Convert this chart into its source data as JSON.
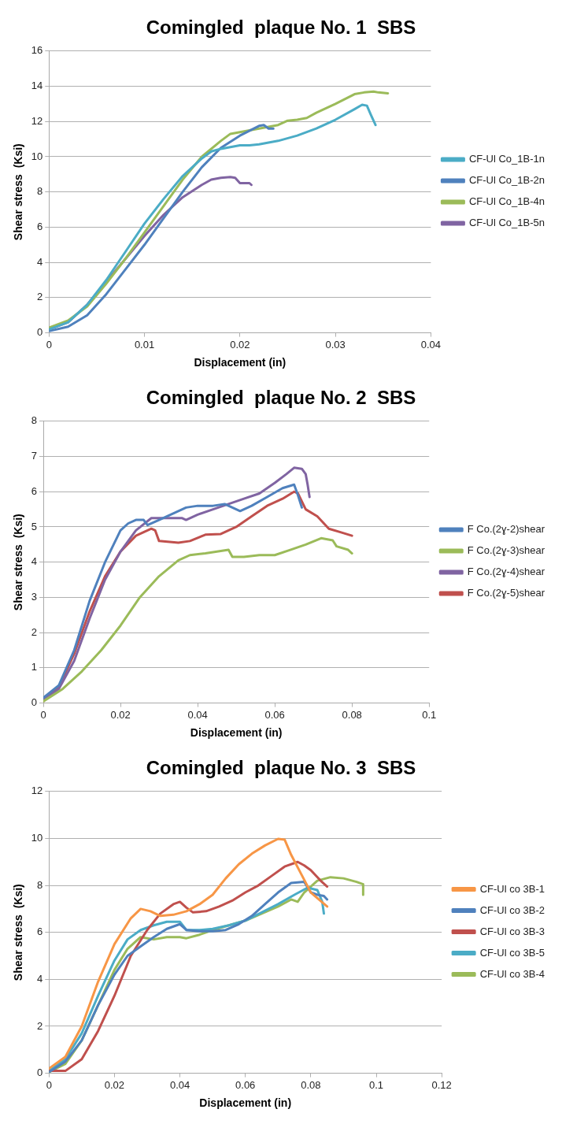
{
  "chart_data": [
    {
      "type": "line",
      "title": "Comingled  plaque No. 1  SBS",
      "xlabel": "Displacement (in)",
      "ylabel": "Shear stress  (Ksi)",
      "xlim": [
        0,
        0.04
      ],
      "ylim": [
        0,
        16
      ],
      "xticks": [
        0,
        0.01,
        0.02,
        0.03,
        0.04
      ],
      "yticks": [
        0,
        2,
        4,
        6,
        8,
        10,
        12,
        14,
        16
      ],
      "grid": "y",
      "legend": "right",
      "series": [
        {
          "name": "CF-Ul Co_1B-1n",
          "color": "#4bacc6",
          "x": [
            0,
            0.002,
            0.004,
            0.006,
            0.008,
            0.01,
            0.012,
            0.014,
            0.016,
            0.017,
            0.018,
            0.02,
            0.021,
            0.022,
            0.024,
            0.026,
            0.028,
            0.03,
            0.032,
            0.0328,
            0.0333,
            0.0337,
            0.0342
          ],
          "values": [
            0.2,
            0.6,
            1.6,
            3.0,
            4.6,
            6.2,
            7.6,
            8.9,
            9.9,
            10.3,
            10.45,
            10.65,
            10.65,
            10.7,
            10.9,
            11.2,
            11.6,
            12.1,
            12.7,
            12.95,
            12.9,
            12.4,
            11.8
          ]
        },
        {
          "name": "CF-Ul Co_1B-2n",
          "color": "#4f81bd",
          "x": [
            0,
            0.002,
            0.004,
            0.006,
            0.008,
            0.01,
            0.012,
            0.014,
            0.016,
            0.018,
            0.02,
            0.022,
            0.0225,
            0.023,
            0.0235
          ],
          "values": [
            0.1,
            0.35,
            1.0,
            2.2,
            3.6,
            5.0,
            6.5,
            8.0,
            9.4,
            10.5,
            11.2,
            11.75,
            11.8,
            11.6,
            11.6
          ]
        },
        {
          "name": "CF-Ul Co_1B-4n",
          "color": "#9bbb59",
          "x": [
            0,
            0.002,
            0.004,
            0.006,
            0.008,
            0.01,
            0.012,
            0.014,
            0.016,
            0.018,
            0.019,
            0.02,
            0.022,
            0.024,
            0.025,
            0.026,
            0.027,
            0.028,
            0.03,
            0.032,
            0.033,
            0.034,
            0.0345,
            0.0355
          ],
          "values": [
            0.3,
            0.7,
            1.5,
            2.8,
            4.2,
            5.7,
            7.2,
            8.7,
            10.0,
            10.9,
            11.3,
            11.4,
            11.6,
            11.8,
            12.05,
            12.1,
            12.2,
            12.5,
            13.0,
            13.55,
            13.65,
            13.7,
            13.65,
            13.6
          ]
        },
        {
          "name": "CF-Ul Co_1B-5n",
          "color": "#8064a2",
          "x": [
            0,
            0.002,
            0.004,
            0.006,
            0.008,
            0.01,
            0.012,
            0.014,
            0.016,
            0.017,
            0.018,
            0.019,
            0.0195,
            0.02,
            0.021,
            0.0212
          ],
          "values": [
            0.2,
            0.6,
            1.6,
            2.9,
            4.2,
            5.5,
            6.7,
            7.7,
            8.4,
            8.7,
            8.8,
            8.85,
            8.8,
            8.5,
            8.5,
            8.4
          ]
        }
      ]
    },
    {
      "type": "line",
      "title": "Comingled  plaque No. 2  SBS",
      "xlabel": "Displacement (in)",
      "ylabel": "Shear stress  (Ksi)",
      "xlim": [
        0,
        0.1
      ],
      "ylim": [
        0,
        8
      ],
      "xticks": [
        0,
        0.02,
        0.04,
        0.06,
        0.08,
        0.1
      ],
      "yticks": [
        0,
        1,
        2,
        3,
        4,
        5,
        6,
        7,
        8
      ],
      "grid": "y",
      "legend": "right",
      "series": [
        {
          "name": "F Co.(2ɣ-2)shear",
          "color": "#4f81bd",
          "x": [
            0,
            0.004,
            0.008,
            0.012,
            0.016,
            0.02,
            0.022,
            0.024,
            0.026,
            0.027,
            0.03,
            0.034,
            0.037,
            0.04,
            0.044,
            0.047,
            0.049,
            0.051,
            0.054,
            0.058,
            0.062,
            0.065,
            0.066,
            0.067
          ],
          "values": [
            0.15,
            0.5,
            1.5,
            2.9,
            4.0,
            4.9,
            5.1,
            5.2,
            5.2,
            5.05,
            5.2,
            5.4,
            5.55,
            5.6,
            5.6,
            5.65,
            5.55,
            5.45,
            5.6,
            5.85,
            6.1,
            6.2,
            5.9,
            5.55
          ]
        },
        {
          "name": "F Co.(2ɣ-3)shear",
          "color": "#9bbb59",
          "x": [
            0,
            0.005,
            0.01,
            0.015,
            0.02,
            0.025,
            0.03,
            0.035,
            0.038,
            0.042,
            0.045,
            0.048,
            0.049,
            0.052,
            0.056,
            0.06,
            0.064,
            0.068,
            0.072,
            0.075,
            0.076,
            0.079,
            0.08
          ],
          "values": [
            0.05,
            0.4,
            0.9,
            1.5,
            2.2,
            3.0,
            3.6,
            4.05,
            4.2,
            4.25,
            4.3,
            4.35,
            4.15,
            4.15,
            4.2,
            4.2,
            4.35,
            4.5,
            4.68,
            4.62,
            4.45,
            4.35,
            4.25
          ]
        },
        {
          "name": "F Co.(2ɣ-4)shear",
          "color": "#8064a2",
          "x": [
            0,
            0.004,
            0.008,
            0.012,
            0.016,
            0.02,
            0.024,
            0.028,
            0.03,
            0.032,
            0.036,
            0.037,
            0.04,
            0.044,
            0.048,
            0.052,
            0.056,
            0.06,
            0.063,
            0.065,
            0.067,
            0.068,
            0.0685,
            0.069
          ],
          "values": [
            0.1,
            0.4,
            1.2,
            2.4,
            3.5,
            4.3,
            4.9,
            5.25,
            5.25,
            5.25,
            5.25,
            5.2,
            5.35,
            5.5,
            5.65,
            5.8,
            5.95,
            6.25,
            6.5,
            6.68,
            6.65,
            6.5,
            6.2,
            5.85
          ]
        },
        {
          "name": "F Co.(2ɣ-5)shear",
          "color": "#c0504d",
          "x": [
            0,
            0.004,
            0.008,
            0.012,
            0.016,
            0.02,
            0.024,
            0.028,
            0.029,
            0.03,
            0.035,
            0.038,
            0.042,
            0.046,
            0.05,
            0.054,
            0.058,
            0.062,
            0.065,
            0.066,
            0.068,
            0.071,
            0.074,
            0.077,
            0.08
          ],
          "values": [
            0.05,
            0.45,
            1.4,
            2.6,
            3.6,
            4.3,
            4.75,
            4.95,
            4.9,
            4.6,
            4.55,
            4.6,
            4.78,
            4.8,
            5.0,
            5.3,
            5.6,
            5.8,
            6.0,
            5.95,
            5.5,
            5.3,
            4.95,
            4.85,
            4.75
          ]
        }
      ]
    },
    {
      "type": "line",
      "title": "Comingled  plaque No. 3  SBS",
      "xlabel": "Displacement (in)",
      "ylabel": "Shear stress  (Ksi)",
      "xlim": [
        0,
        0.12
      ],
      "ylim": [
        0,
        12
      ],
      "xticks": [
        0,
        0.02,
        0.04,
        0.06,
        0.08,
        0.1,
        0.12
      ],
      "yticks": [
        0,
        2,
        4,
        6,
        8,
        10,
        12
      ],
      "grid": "y",
      "legend": "right",
      "series": [
        {
          "name": "CF-Ul co 3B-1",
          "color": "#f79646",
          "x": [
            0,
            0.005,
            0.01,
            0.015,
            0.02,
            0.025,
            0.028,
            0.031,
            0.034,
            0.038,
            0.042,
            0.046,
            0.05,
            0.054,
            0.058,
            0.062,
            0.066,
            0.07,
            0.072,
            0.074,
            0.077,
            0.08,
            0.085
          ],
          "values": [
            0.2,
            0.7,
            2.0,
            3.9,
            5.5,
            6.6,
            7.0,
            6.9,
            6.7,
            6.75,
            6.9,
            7.2,
            7.6,
            8.3,
            8.9,
            9.35,
            9.7,
            9.98,
            9.95,
            9.3,
            8.5,
            7.7,
            7.1
          ]
        },
        {
          "name": "CF-Ul co 3B-2",
          "color": "#4f81bd",
          "x": [
            0,
            0.005,
            0.01,
            0.015,
            0.02,
            0.024,
            0.028,
            0.032,
            0.036,
            0.04,
            0.042,
            0.046,
            0.05,
            0.054,
            0.058,
            0.062,
            0.066,
            0.07,
            0.074,
            0.078,
            0.08,
            0.082,
            0.084,
            0.085
          ],
          "values": [
            0.05,
            0.5,
            1.4,
            2.9,
            4.2,
            5.0,
            5.4,
            5.8,
            6.15,
            6.35,
            6.1,
            6.05,
            6.05,
            6.1,
            6.35,
            6.7,
            7.2,
            7.7,
            8.1,
            8.15,
            7.7,
            7.6,
            7.55,
            7.4
          ]
        },
        {
          "name": "CF-Ul co 3B-3",
          "color": "#c0504d",
          "x": [
            0,
            0.005,
            0.01,
            0.015,
            0.02,
            0.025,
            0.03,
            0.034,
            0.038,
            0.04,
            0.042,
            0.044,
            0.048,
            0.052,
            0.056,
            0.06,
            0.064,
            0.068,
            0.072,
            0.076,
            0.078,
            0.08,
            0.083,
            0.085
          ],
          "values": [
            0.1,
            0.1,
            0.6,
            1.8,
            3.3,
            5.0,
            6.1,
            6.8,
            7.2,
            7.3,
            7.05,
            6.85,
            6.9,
            7.1,
            7.35,
            7.7,
            8.0,
            8.4,
            8.8,
            9.0,
            8.85,
            8.65,
            8.2,
            7.95
          ]
        },
        {
          "name": "CF-Ul co 3B-5",
          "color": "#4bacc6",
          "x": [
            0,
            0.005,
            0.01,
            0.015,
            0.02,
            0.024,
            0.028,
            0.032,
            0.036,
            0.04,
            0.042,
            0.046,
            0.05,
            0.055,
            0.06,
            0.065,
            0.07,
            0.075,
            0.079,
            0.082,
            0.0835,
            0.084
          ],
          "values": [
            0.1,
            0.6,
            1.7,
            3.3,
            4.8,
            5.7,
            6.1,
            6.3,
            6.45,
            6.45,
            6.1,
            6.1,
            6.15,
            6.3,
            6.5,
            6.85,
            7.2,
            7.6,
            7.9,
            7.8,
            7.3,
            6.8
          ]
        },
        {
          "name": "CF-Ul co 3B-4",
          "color": "#9bbb59",
          "x": [
            0,
            0.005,
            0.01,
            0.015,
            0.02,
            0.024,
            0.028,
            0.032,
            0.036,
            0.04,
            0.042,
            0.046,
            0.05,
            0.055,
            0.06,
            0.065,
            0.07,
            0.074,
            0.076,
            0.078,
            0.082,
            0.086,
            0.09,
            0.094,
            0.096,
            0.096
          ],
          "values": [
            0.05,
            0.4,
            1.4,
            2.9,
            4.4,
            5.3,
            5.8,
            5.7,
            5.8,
            5.8,
            5.75,
            5.9,
            6.1,
            6.3,
            6.5,
            6.8,
            7.1,
            7.4,
            7.3,
            7.7,
            8.2,
            8.35,
            8.3,
            8.15,
            8.05,
            7.6
          ]
        }
      ]
    }
  ]
}
